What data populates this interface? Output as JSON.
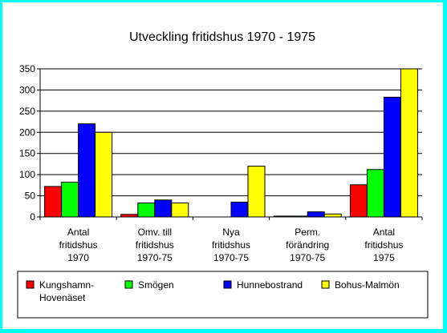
{
  "chart_data": {
    "type": "bar",
    "title": "Utveckling fritidshus 1970 - 1975",
    "xlabel": "",
    "ylabel": "",
    "ylim": [
      0,
      350
    ],
    "yticks": [
      0,
      50,
      100,
      150,
      200,
      250,
      300,
      350
    ],
    "grid": true,
    "legend": "bottom",
    "categories": [
      [
        "Antal",
        "fritidshus",
        "1970"
      ],
      [
        "Omv. till",
        "fritidshus",
        "1970-75"
      ],
      [
        "Nya",
        "fritidshus",
        "1970-75"
      ],
      [
        "Perm.",
        "förändring",
        "1970-75"
      ],
      [
        "Antal",
        "fritidshus",
        "1975"
      ]
    ],
    "series": [
      {
        "name": [
          "Kungshamn-",
          "Hovenäset"
        ],
        "color": "#ff0000",
        "values": [
          72,
          6,
          0,
          2,
          76
        ]
      },
      {
        "name": [
          "Smögen"
        ],
        "color": "#00ff00",
        "values": [
          82,
          33,
          0,
          2,
          112
        ]
      },
      {
        "name": [
          "Hunnebostrand"
        ],
        "color": "#0000ff",
        "values": [
          220,
          40,
          35,
          12,
          283
        ]
      },
      {
        "name": [
          "Bohus-Malmön"
        ],
        "color": "#ffff00",
        "values": [
          200,
          33,
          120,
          7,
          350
        ]
      }
    ]
  }
}
